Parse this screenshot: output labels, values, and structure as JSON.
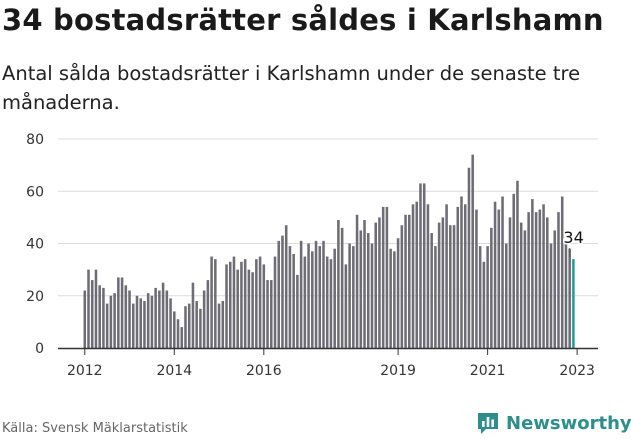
{
  "title": "34 bostadsrätter såldes i Karlshamn",
  "subtitle": "Antal sålda bostadsrätter i Karlshamn under de senaste tre månaderna.",
  "source": "Källa: Svensk Mäklarstatistik",
  "brand": {
    "name": "Newsworthy",
    "icon": "newsworthy-logo-icon",
    "color": "#2d8e8a"
  },
  "colors": {
    "bar": "#6e6d75",
    "highlight": "#1f9e9a",
    "axis": "#333333"
  },
  "chart_data": {
    "type": "bar",
    "title": "34 bostadsrätter såldes i Karlshamn",
    "xlabel": "",
    "ylabel": "",
    "ylim": [
      0,
      80
    ],
    "yticks": [
      0,
      20,
      40,
      60,
      80
    ],
    "xtick_labels": [
      "2012",
      "2014",
      "2016",
      "2019",
      "2021",
      "2023"
    ],
    "xtick_positions": [
      0,
      24,
      48,
      84,
      108,
      132
    ],
    "grid": true,
    "start": "2012-01",
    "end_label": "34",
    "values": [
      22,
      30,
      26,
      30,
      24,
      23,
      17,
      20,
      21,
      27,
      27,
      24,
      22,
      17,
      20,
      19,
      18,
      21,
      20,
      23,
      22,
      25,
      22,
      19,
      14,
      11,
      8,
      16,
      17,
      25,
      18,
      15,
      22,
      26,
      35,
      34,
      17,
      18,
      32,
      33,
      35,
      30,
      33,
      34,
      30,
      29,
      34,
      35,
      32,
      26,
      26,
      35,
      41,
      43,
      47,
      39,
      36,
      28,
      41,
      35,
      40,
      37,
      41,
      39,
      41,
      35,
      34,
      38,
      49,
      46,
      32,
      40,
      39,
      51,
      45,
      49,
      44,
      40,
      48,
      50,
      54,
      54,
      38,
      37,
      42,
      47,
      51,
      51,
      55,
      56,
      63,
      63,
      55,
      44,
      39,
      48,
      50,
      55,
      47,
      47,
      54,
      58,
      55,
      69,
      74,
      53,
      39,
      33,
      39,
      46,
      56,
      53,
      58,
      40,
      50,
      59,
      64,
      48,
      45,
      52,
      57,
      52,
      53,
      55,
      50,
      40,
      45,
      52,
      58,
      40,
      38,
      34
    ]
  }
}
